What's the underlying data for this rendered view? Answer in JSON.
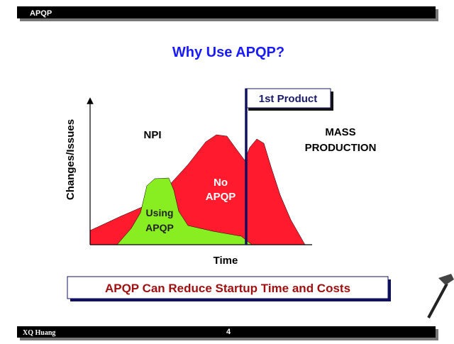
{
  "header": {
    "title": "APQP"
  },
  "slide": {
    "title": "Why Use APQP?",
    "y_axis_label": "Changes/Issues",
    "x_axis_label": "Time",
    "marker_label": "1st Product",
    "regions": {
      "npi": "NPI",
      "mass_production": [
        "MASS",
        "PRODUCTION"
      ],
      "no_apqp": [
        "No",
        "APQP"
      ],
      "using_apqp": [
        "Using",
        "APQP"
      ]
    },
    "conclusion": "APQP Can Reduce Startup Time and Costs"
  },
  "footer": {
    "author": "XQ Huang",
    "page": "4"
  }
}
